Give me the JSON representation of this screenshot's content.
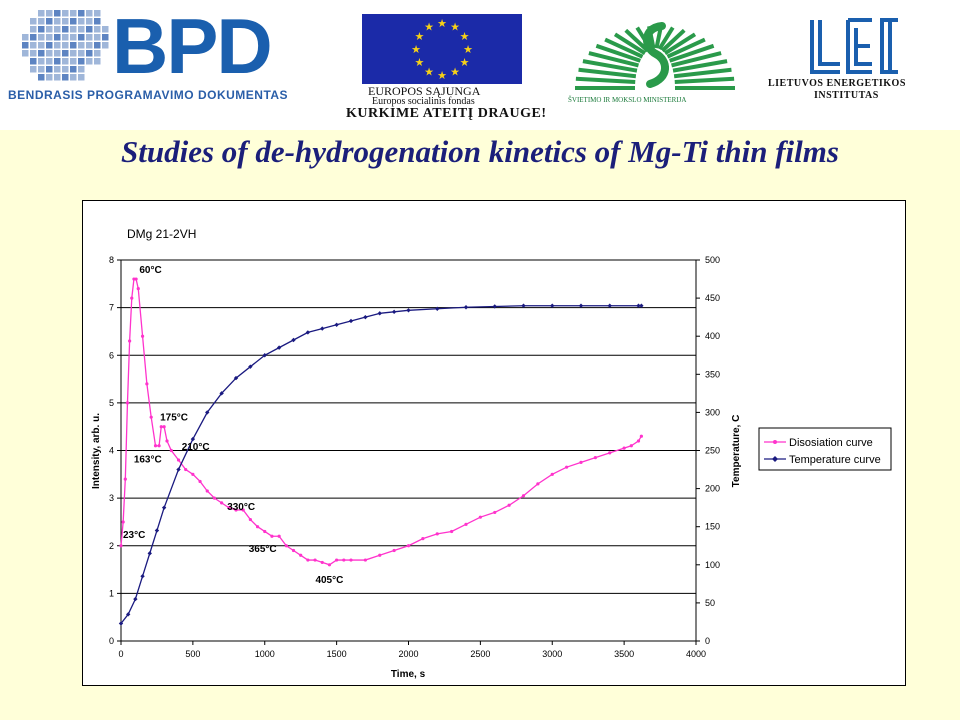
{
  "header": {
    "bpd_logo_text": "BPD",
    "bpd_subtitle": "BENDRASIS PROGRAMAVIMO DOKUMENTAS",
    "eu_line1": "EUROPOS SĄJUNGA",
    "eu_line2": "Europos socialinis fondas",
    "eu_slogan": "KURKIME ATEITĮ DRAUGE!",
    "ministry_text": "ŠVIETIMO IR MOKSLO MINISTERIJA",
    "lei_line1": "LIETUVOS ENERGETIKOS",
    "lei_line2": "INSTITUTAS"
  },
  "slide_title": "Studies of de-hydrogenation kinetics of Mg-Ti thin films",
  "colors": {
    "background": "#FFFFD9",
    "title": "#1b1f7a",
    "dissociation": "#FF33CC",
    "temperature": "#1A1A80",
    "eu_blue": "#1b2aa8",
    "eu_gold": "#f7d117",
    "ministry_green": "#2a9a4a",
    "bpd_blue": "#1a5fae"
  },
  "chart_data": {
    "type": "line",
    "title": "DMg 21-2VH",
    "xlabel": "Time, s",
    "ylabel": "Intensity, arb. u.",
    "y2label": "Temperature, C",
    "xlim": [
      0,
      4000
    ],
    "ylim": [
      0,
      8
    ],
    "y2lim": [
      0,
      500
    ],
    "x_ticks": [
      "0",
      "500",
      "1000",
      "1500",
      "2000",
      "2500",
      "3000",
      "3500",
      "4000"
    ],
    "y_ticks": [
      "0",
      "1",
      "2",
      "3",
      "4",
      "5",
      "6",
      "7",
      "8"
    ],
    "y2_ticks": [
      "0",
      "50",
      "100",
      "150",
      "200",
      "250",
      "300",
      "350",
      "400",
      "450",
      "500"
    ],
    "grid": "horizontal",
    "legend_position": "right",
    "series": [
      {
        "name": "Disosiation curve",
        "axis": "left",
        "x": [
          0,
          15,
          30,
          45,
          60,
          75,
          90,
          105,
          120,
          150,
          180,
          210,
          240,
          265,
          280,
          300,
          320,
          350,
          400,
          450,
          500,
          550,
          600,
          650,
          700,
          750,
          800,
          850,
          900,
          950,
          1000,
          1050,
          1100,
          1150,
          1200,
          1250,
          1300,
          1350,
          1400,
          1450,
          1500,
          1550,
          1600,
          1700,
          1800,
          1900,
          2000,
          2100,
          2200,
          2300,
          2400,
          2500,
          2600,
          2700,
          2800,
          2900,
          3000,
          3100,
          3200,
          3300,
          3400,
          3500,
          3550,
          3600,
          3620
        ],
        "y": [
          2.0,
          2.5,
          3.4,
          5.0,
          6.3,
          7.2,
          7.6,
          7.6,
          7.4,
          6.4,
          5.4,
          4.7,
          4.1,
          4.1,
          4.5,
          4.5,
          4.2,
          4.0,
          3.8,
          3.6,
          3.5,
          3.35,
          3.15,
          3.0,
          2.9,
          2.8,
          2.75,
          2.75,
          2.55,
          2.4,
          2.3,
          2.2,
          2.2,
          2.0,
          1.9,
          1.8,
          1.7,
          1.7,
          1.65,
          1.6,
          1.7,
          1.7,
          1.7,
          1.7,
          1.8,
          1.9,
          2.0,
          2.15,
          2.25,
          2.3,
          2.45,
          2.6,
          2.7,
          2.85,
          3.05,
          3.3,
          3.5,
          3.65,
          3.75,
          3.85,
          3.95,
          4.05,
          4.1,
          4.2,
          4.3
        ]
      },
      {
        "name": "Temperature curve",
        "axis": "right",
        "x": [
          0,
          50,
          100,
          150,
          200,
          250,
          300,
          400,
          500,
          600,
          700,
          800,
          900,
          1000,
          1100,
          1200,
          1300,
          1400,
          1500,
          1600,
          1700,
          1800,
          1900,
          2000,
          2200,
          2400,
          2600,
          2800,
          3000,
          3200,
          3400,
          3600,
          3620
        ],
        "y": [
          23,
          35,
          55,
          85,
          115,
          145,
          175,
          225,
          265,
          300,
          325,
          345,
          360,
          375,
          385,
          395,
          405,
          410,
          415,
          420,
          425,
          430,
          432,
          434,
          436,
          438,
          439,
          440,
          440,
          440,
          440,
          440,
          440
        ]
      }
    ],
    "annotations": [
      {
        "text": "60°C",
        "x": 100,
        "y": 7.6
      },
      {
        "text": "175°C",
        "x": 300,
        "y": 4.5
      },
      {
        "text": "163°C",
        "x": 270,
        "y": 4.0
      },
      {
        "text": "210°C",
        "x": 450,
        "y": 4.05
      },
      {
        "text": "330°C",
        "x": 850,
        "y": 2.75
      },
      {
        "text": "365°C",
        "x": 1000,
        "y": 2.2
      },
      {
        "text": "405°C",
        "x": 1450,
        "y": 1.6
      },
      {
        "text": "23°C",
        "x": 0,
        "y": 2.0
      }
    ]
  }
}
